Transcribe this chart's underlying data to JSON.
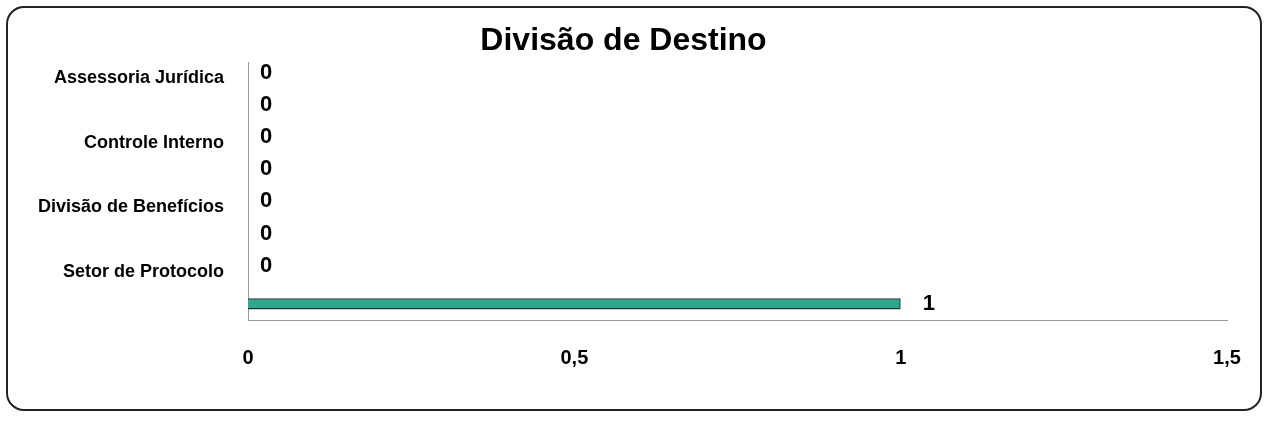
{
  "chart_data": {
    "type": "bar",
    "orientation": "horizontal",
    "title": "Divisão de Destino",
    "categories": [
      "Assessoria Jurídica",
      null,
      "Controle Interno",
      null,
      "Divisão de Benefícios",
      null,
      "Setor de Protocolo",
      null
    ],
    "values": [
      0,
      0,
      0,
      0,
      0,
      0,
      0,
      1
    ],
    "color": "#2ea88c",
    "xlim": [
      0,
      1.5
    ],
    "xticks": [
      0,
      {
        "value": 0.5,
        "label": "0,5"
      },
      1,
      {
        "value": 1.5,
        "label": "1,5"
      }
    ],
    "data_labels": true,
    "grid": false,
    "legend": false
  }
}
